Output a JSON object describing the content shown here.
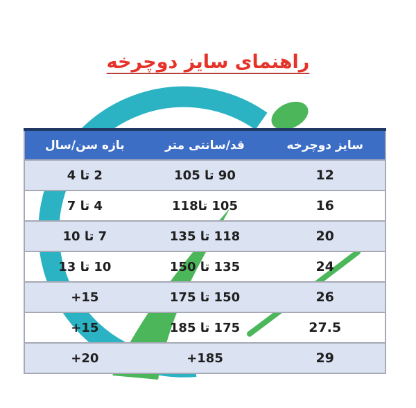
{
  "chart_data": {
    "type": "table",
    "title": "راهنمای سایز دوچرخه",
    "columns": [
      "سایز دوچرخه",
      "قد/سانتی متر",
      "بازه سن/سال"
    ],
    "rows": [
      [
        "12",
        "90 تا 105",
        "2 تا 4"
      ],
      [
        "16",
        "105 تا118",
        "4 تا 7"
      ],
      [
        "20",
        "118 تا 135",
        "7 تا 10"
      ],
      [
        "24",
        "135 تا 150",
        "10 تا 13"
      ],
      [
        "26",
        "150 تا 175",
        "+15"
      ],
      [
        "27.5",
        "175 تا 185",
        "+15"
      ],
      [
        "29",
        "+185",
        "+20"
      ]
    ],
    "layout": {
      "direction": "rtl",
      "zebra_rows": "odd rows shaded light blue, even rows transparent over background logo"
    }
  },
  "icons": {
    "background_logo": "teal-arc-with-green-leaf-swoosh-watermark"
  },
  "colors": {
    "title_red": "#e63329",
    "title_underline": "#b8433d",
    "header_bg": "#3d6ec5",
    "header_top": "#1f3864",
    "header_text": "#ffffff",
    "row_alt": "#dbe2f1",
    "row_border": "#a6a9b5",
    "cell_text": "#1f1f1f",
    "teal": "#2bb3c3",
    "green": "#4cb75a"
  }
}
